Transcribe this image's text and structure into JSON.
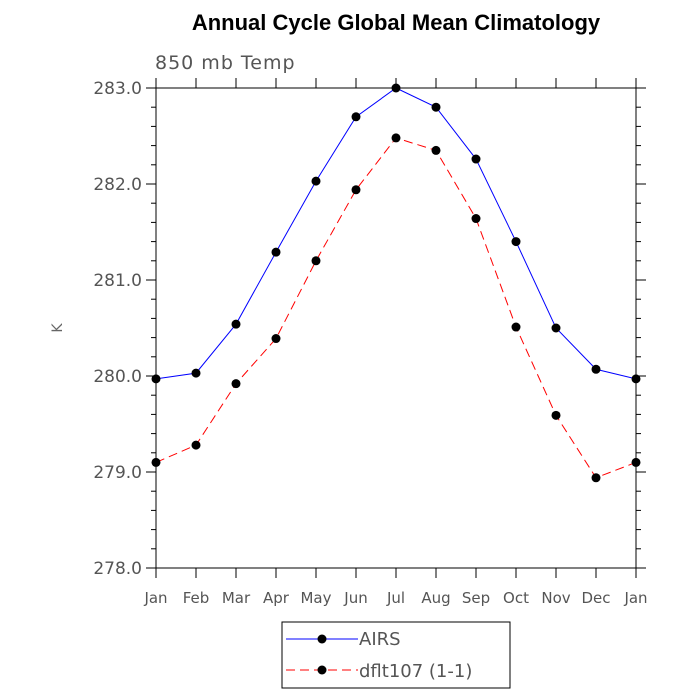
{
  "chart_data": {
    "type": "line",
    "title": "Annual Cycle Global Mean Climatology",
    "subtitle": "850 mb Temp",
    "xlabel": "",
    "ylabel": "K",
    "categories": [
      "Jan",
      "Feb",
      "Mar",
      "Apr",
      "May",
      "Jun",
      "Jul",
      "Aug",
      "Sep",
      "Oct",
      "Nov",
      "Dec",
      "Jan"
    ],
    "ylim": [
      278.0,
      283.0
    ],
    "yticks": [
      278.0,
      279.0,
      280.0,
      281.0,
      282.0,
      283.0
    ],
    "ytick_labels": [
      "278.0",
      "279.0",
      "280.0",
      "281.0",
      "282.0",
      "283.0"
    ],
    "grid": false,
    "legend_position": "bottom",
    "series": [
      {
        "name": "AIRS",
        "color": "#0000ff",
        "line_style": "solid",
        "marker": "filled-circle",
        "values": [
          279.97,
          280.03,
          280.54,
          281.29,
          282.03,
          282.7,
          283.0,
          282.8,
          282.26,
          281.4,
          280.5,
          280.07,
          279.97
        ]
      },
      {
        "name": "dflt107 (1-1)",
        "color": "#ff0000",
        "line_style": "dashed",
        "marker": "filled-circle",
        "values": [
          279.1,
          279.28,
          279.92,
          280.39,
          281.2,
          281.94,
          282.48,
          282.35,
          281.64,
          280.51,
          279.59,
          278.94,
          279.1
        ]
      }
    ]
  }
}
